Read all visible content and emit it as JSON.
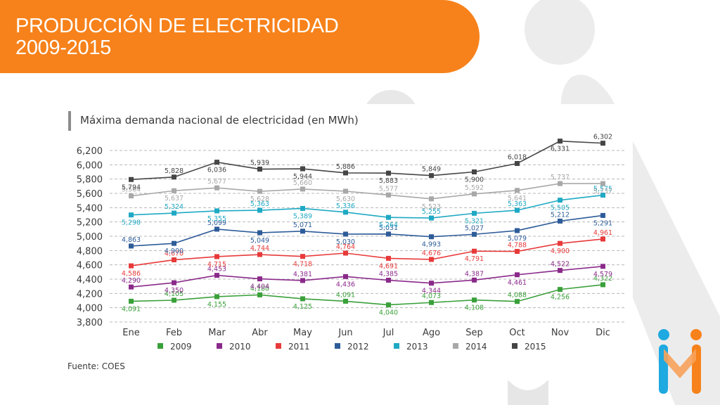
{
  "slide": {
    "title_line1": "PRODUCCIÓN DE ELECTRICIDAD",
    "title_line2": "2009-2015",
    "accent_color": "#f7821b"
  },
  "source_note": "Fuente: COES",
  "chart_data": {
    "type": "line",
    "title": "Máxima demanda nacional de electricidad (en MWh)",
    "xlabel": "",
    "ylabel": "",
    "categories": [
      "Ene",
      "Feb",
      "Mar",
      "Abr",
      "May",
      "Jun",
      "Jul",
      "Ago",
      "Sep",
      "Oct",
      "Nov",
      "Dic"
    ],
    "ylim": [
      3800,
      6200
    ],
    "yticks": [
      3800,
      4000,
      4200,
      4400,
      4600,
      4800,
      5000,
      5200,
      5400,
      5600,
      5800,
      6000,
      6200
    ],
    "ytick_labels": [
      "3,800",
      "4,000",
      "4,200",
      "4,400",
      "4,600",
      "4,800",
      "5,000",
      "5,200",
      "5,400",
      "5,600",
      "5,800",
      "6,000",
      "6,200"
    ],
    "grid": true,
    "legend": "bottom",
    "series": [
      {
        "name": "2009",
        "color": "#3aa03a",
        "values": [
          4091,
          4105,
          4155,
          4180,
          4125,
          4091,
          4040,
          4073,
          4108,
          4088,
          4256,
          4322
        ],
        "labels": [
          "4,091",
          "4,105",
          "4,155",
          "4,180",
          "4,125",
          "4,091",
          "4,040",
          "4,073",
          "4,108",
          "4,088",
          "4,256",
          "4,322"
        ]
      },
      {
        "name": "2010",
        "color": "#8a2a8a",
        "values": [
          4290,
          4350,
          4453,
          4404,
          4381,
          4436,
          4385,
          4344,
          4387,
          4461,
          4522,
          4579
        ],
        "labels": [
          "4,290",
          "4,350",
          "4,453",
          "4,404",
          "4,381",
          "4,436",
          "4,385",
          "4,344",
          "4,387",
          "4,461",
          "4,522",
          "4,579"
        ]
      },
      {
        "name": "2011",
        "color": "#e83a3a",
        "values": [
          4586,
          4670,
          4715,
          4744,
          4718,
          4764,
          4691,
          4676,
          4791,
          4788,
          4900,
          4961
        ],
        "labels": [
          "4,586",
          "4,670",
          "4,715",
          "4,744",
          "4,718",
          "4,764",
          "4,691",
          "4,676",
          "4,791",
          "4,788",
          "4,900",
          "4,961"
        ]
      },
      {
        "name": "2012",
        "color": "#2e5c99",
        "values": [
          4863,
          4900,
          5099,
          5049,
          5071,
          5030,
          5031,
          4993,
          5027,
          5079,
          5212,
          5291
        ],
        "labels": [
          "4,863",
          "4,900",
          "5,099",
          "5,049",
          "5,071",
          "5,030",
          "5,031",
          "4,993",
          "5,027",
          "5,079",
          "5,212",
          "5,291"
        ]
      },
      {
        "name": "2013",
        "color": "#1fa9c4",
        "values": [
          5298,
          5324,
          5355,
          5363,
          5389,
          5336,
          5264,
          5255,
          5321,
          5363,
          5505,
          5575
        ],
        "labels": [
          "5,298",
          "5,324",
          "5,355",
          "5,363",
          "5,389",
          "5,336",
          "5,264",
          "5,255",
          "5,321",
          "5,363",
          "5,505",
          "5,575"
        ]
      },
      {
        "name": "2014",
        "color": "#a8a8a8",
        "values": [
          5564,
          5637,
          5677,
          5628,
          5660,
          5630,
          5577,
          5523,
          5592,
          5641,
          5737,
          5737
        ],
        "labels": [
          "5,564",
          "5,637",
          "5,677",
          "5,628",
          "5,660",
          "5,630",
          "5,577",
          "5,523",
          "5,592",
          "5,641",
          "5,737",
          "5,737"
        ]
      },
      {
        "name": "2015",
        "color": "#454545",
        "values": [
          5794,
          5828,
          6036,
          5939,
          5944,
          5886,
          5883,
          5849,
          5900,
          6018,
          6331,
          6302
        ],
        "labels": [
          "5,794",
          "5,828",
          "6,036",
          "5,939",
          "5,944",
          "5,886",
          "5,883",
          "5,849",
          "5,900",
          "6,018",
          "6,331",
          "6,302"
        ]
      }
    ]
  }
}
